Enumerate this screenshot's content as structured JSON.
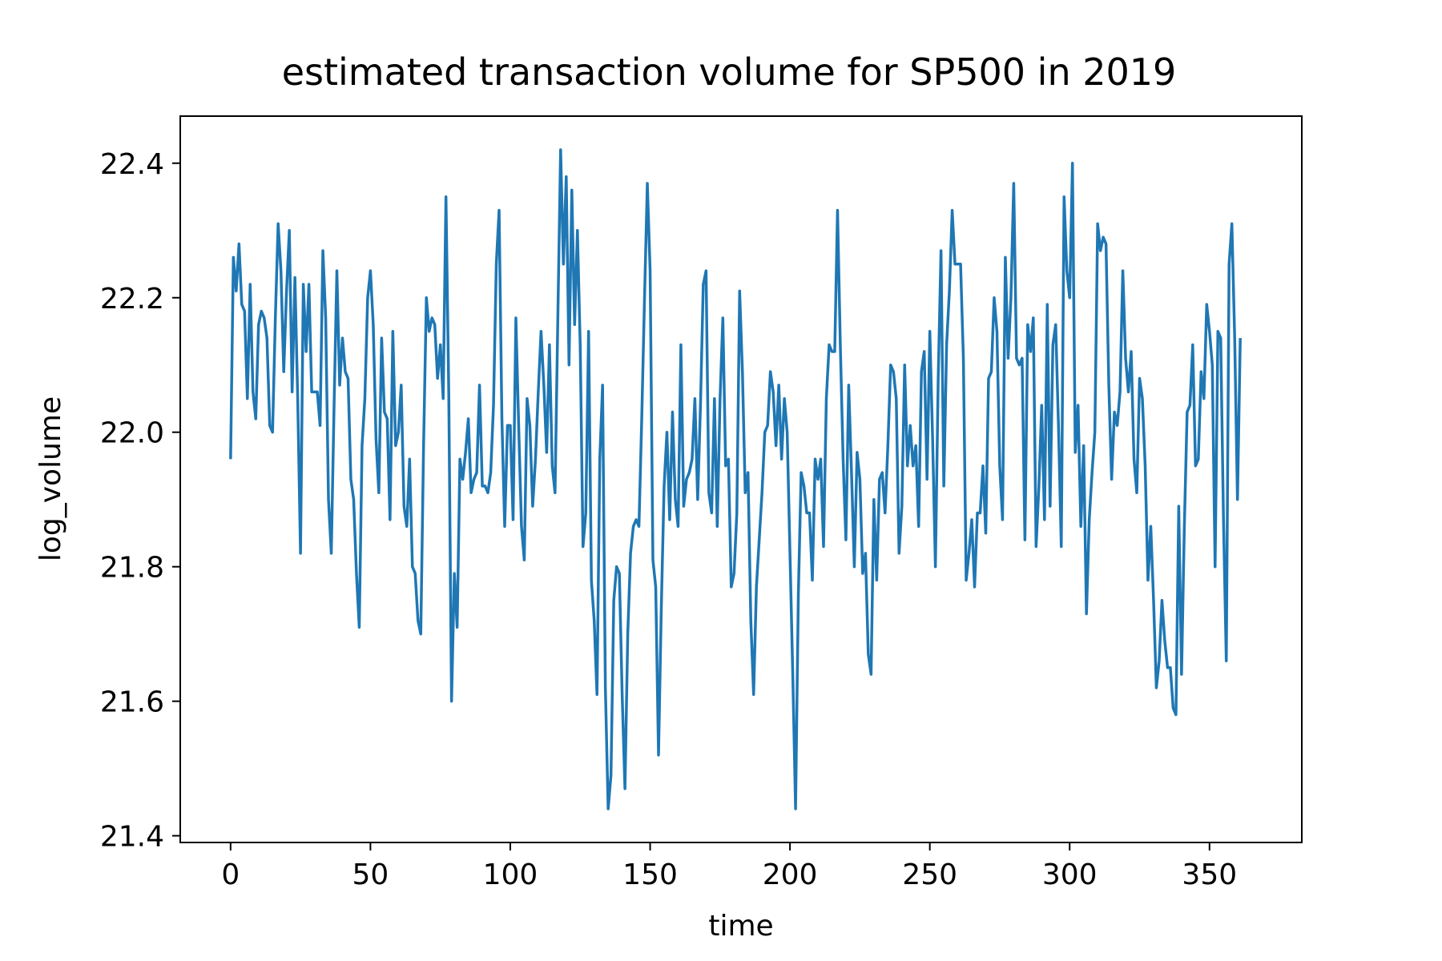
{
  "chart_data": {
    "type": "line",
    "title": "estimated transaction volume for SP500 in 2019",
    "xlabel": "time",
    "ylabel": "log_volume",
    "xlim": [
      -18,
      383
    ],
    "ylim": [
      21.39,
      22.47
    ],
    "xticks": [
      0,
      50,
      100,
      150,
      200,
      250,
      300,
      350
    ],
    "yticks": [
      21.4,
      21.6,
      21.8,
      22.0,
      22.2,
      22.4
    ],
    "xtick_labels": [
      "0",
      "50",
      "100",
      "150",
      "200",
      "250",
      "300",
      "350"
    ],
    "ytick_labels": [
      "21.4",
      "21.6",
      "21.8",
      "22.0",
      "22.2",
      "22.4"
    ],
    "grid": false,
    "series": [
      {
        "color": "#1f77b4",
        "y": [
          21.96,
          22.26,
          22.21,
          22.28,
          22.19,
          22.18,
          22.05,
          22.22,
          22.06,
          22.02,
          22.16,
          22.18,
          22.17,
          22.14,
          22.01,
          22.0,
          22.17,
          22.31,
          22.24,
          22.09,
          22.21,
          22.3,
          22.06,
          22.23,
          22.05,
          21.82,
          22.22,
          22.12,
          22.22,
          22.06,
          22.06,
          22.06,
          22.01,
          22.27,
          22.17,
          21.9,
          21.82,
          22.04,
          22.24,
          22.07,
          22.14,
          22.09,
          22.08,
          21.93,
          21.9,
          21.79,
          21.71,
          21.98,
          22.05,
          22.2,
          22.24,
          22.16,
          21.99,
          21.91,
          22.14,
          22.03,
          22.02,
          21.87,
          22.15,
          21.98,
          22.0,
          22.07,
          21.89,
          21.86,
          21.96,
          21.8,
          21.79,
          21.72,
          21.7,
          21.98,
          22.2,
          22.15,
          22.17,
          22.16,
          22.08,
          22.13,
          22.05,
          22.35,
          22.06,
          21.6,
          21.79,
          21.71,
          21.96,
          21.93,
          21.97,
          22.02,
          21.91,
          21.93,
          21.94,
          22.07,
          21.92,
          21.92,
          21.91,
          21.94,
          22.04,
          22.25,
          22.33,
          22.02,
          21.86,
          22.01,
          22.01,
          21.87,
          22.17,
          22.01,
          21.86,
          21.81,
          22.05,
          22.01,
          21.89,
          21.96,
          22.06,
          22.15,
          22.07,
          21.97,
          22.13,
          21.95,
          21.91,
          22.17,
          22.42,
          22.25,
          22.38,
          22.1,
          22.36,
          22.16,
          22.3,
          22.13,
          21.83,
          21.88,
          22.15,
          21.78,
          21.72,
          21.61,
          21.96,
          22.07,
          21.62,
          21.44,
          21.49,
          21.75,
          21.8,
          21.79,
          21.61,
          21.47,
          21.7,
          21.82,
          21.86,
          21.87,
          21.86,
          22.02,
          22.2,
          22.37,
          22.24,
          21.81,
          21.77,
          21.52,
          21.74,
          21.92,
          22.0,
          21.87,
          22.03,
          21.9,
          21.86,
          22.13,
          21.89,
          21.93,
          21.94,
          21.96,
          22.05,
          21.9,
          22.04,
          22.22,
          22.24,
          21.91,
          21.88,
          22.05,
          21.86,
          22.05,
          22.17,
          21.95,
          21.96,
          21.77,
          21.79,
          21.88,
          22.21,
          22.09,
          21.91,
          21.94,
          21.72,
          21.61,
          21.77,
          21.84,
          21.91,
          22.0,
          22.01,
          22.09,
          22.06,
          21.98,
          22.07,
          21.96,
          22.05,
          22.0,
          21.82,
          21.64,
          21.44,
          21.76,
          21.94,
          21.92,
          21.88,
          21.88,
          21.78,
          21.96,
          21.93,
          21.96,
          21.83,
          22.05,
          22.13,
          22.12,
          22.12,
          22.33,
          22.13,
          21.96,
          21.84,
          22.07,
          21.94,
          21.8,
          21.97,
          21.93,
          21.79,
          21.82,
          21.67,
          21.64,
          21.9,
          21.78,
          21.93,
          21.94,
          21.88,
          21.98,
          22.1,
          22.09,
          22.05,
          21.82,
          21.89,
          22.1,
          21.95,
          22.01,
          21.95,
          21.98,
          21.86,
          22.09,
          22.12,
          21.93,
          22.15,
          21.99,
          21.8,
          22.08,
          22.27,
          21.92,
          22.13,
          22.21,
          22.33,
          22.25,
          22.25,
          22.25,
          22.11,
          21.78,
          21.82,
          21.87,
          21.77,
          21.88,
          21.88,
          21.95,
          21.85,
          22.08,
          22.09,
          22.2,
          22.15,
          21.95,
          21.87,
          22.26,
          22.11,
          22.2,
          22.37,
          22.11,
          22.1,
          22.11,
          21.84,
          22.16,
          22.12,
          22.17,
          21.83,
          21.92,
          22.04,
          21.87,
          22.19,
          21.89,
          22.13,
          22.16,
          22.01,
          21.83,
          22.35,
          22.24,
          22.2,
          22.4,
          21.97,
          22.04,
          21.86,
          21.98,
          21.73,
          21.87,
          21.94,
          22.0,
          22.31,
          22.27,
          22.29,
          22.28,
          22.07,
          21.93,
          22.03,
          22.01,
          22.06,
          22.24,
          22.11,
          22.06,
          22.12,
          21.96,
          21.91,
          22.08,
          22.05,
          21.95,
          21.78,
          21.86,
          21.75,
          21.62,
          21.66,
          21.75,
          21.69,
          21.65,
          21.65,
          21.59,
          21.58,
          21.89,
          21.64,
          21.86,
          22.03,
          22.04,
          22.13,
          21.95,
          21.96,
          22.09,
          22.05,
          22.19,
          22.15,
          22.1,
          21.8,
          22.15,
          22.14,
          21.87,
          21.66,
          22.25,
          22.31,
          22.14,
          21.9,
          22.14
        ]
      }
    ]
  }
}
